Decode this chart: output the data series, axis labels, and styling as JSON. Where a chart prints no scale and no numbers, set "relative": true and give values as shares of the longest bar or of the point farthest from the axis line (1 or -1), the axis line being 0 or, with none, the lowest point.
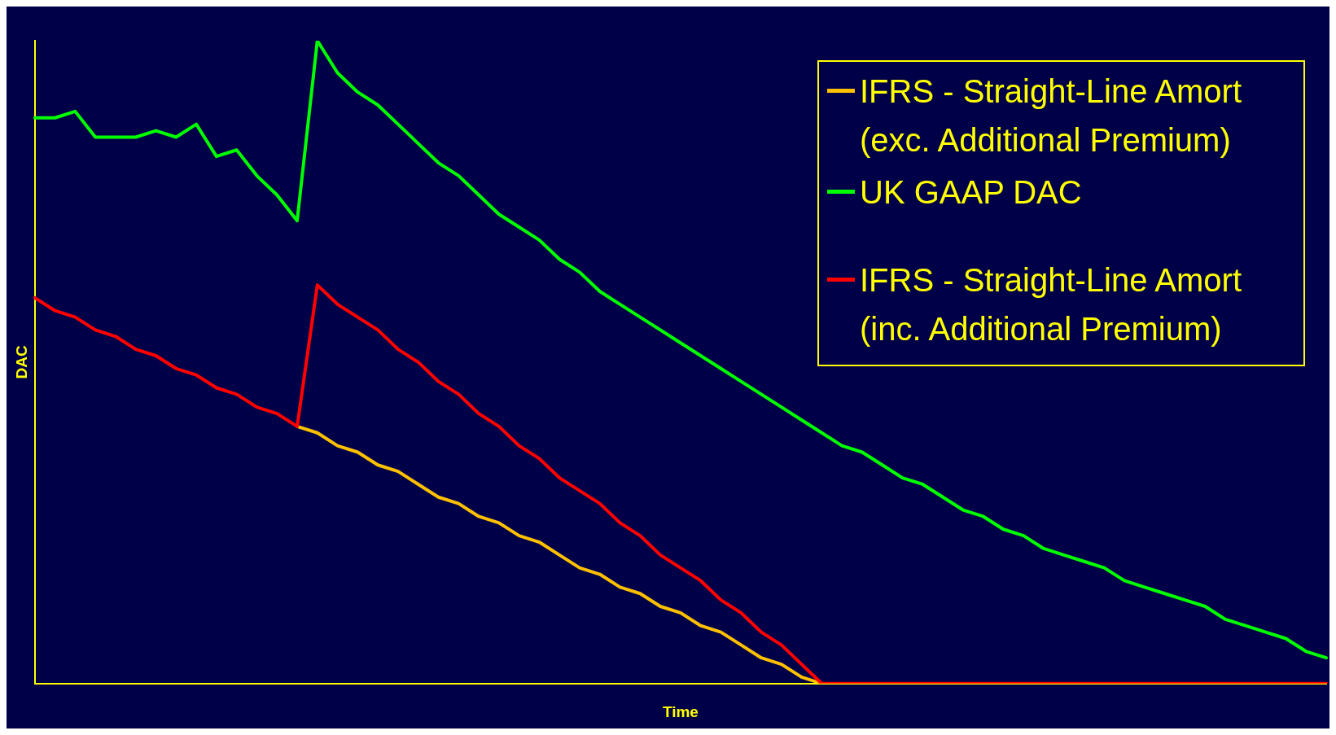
{
  "chart_data": {
    "type": "line",
    "relative": true,
    "xlabel": "Time",
    "ylabel": "DAC",
    "legend": "top right",
    "grid": false,
    "marker": "none",
    "line_style": "solid",
    "categories": [
      null,
      null,
      null,
      null,
      null,
      null,
      null,
      null,
      null,
      null,
      null,
      null,
      null,
      null,
      null,
      null,
      null,
      null,
      null,
      null,
      null,
      null,
      null,
      null,
      null,
      null,
      null,
      null,
      null,
      null,
      null,
      null,
      null,
      null,
      null,
      null,
      null,
      null,
      null,
      null,
      null,
      null,
      null,
      null,
      null,
      null,
      null,
      null,
      null,
      null,
      null,
      null,
      null,
      null,
      null,
      null,
      null,
      null,
      null,
      null,
      null,
      null,
      null,
      null,
      null
    ],
    "series": [
      {
        "name": "IFRS - Straight-Line Amort (exc. Additional Premium)",
        "color": "#ffc000",
        "values": [
          null,
          null,
          null,
          null,
          null,
          null,
          null,
          null,
          null,
          null,
          null,
          null,
          null,
          0.4,
          0.39,
          0.37,
          0.36,
          0.34,
          0.33,
          0.31,
          0.29,
          0.28,
          0.26,
          0.25,
          0.23,
          0.22,
          0.2,
          0.18,
          0.17,
          0.15,
          0.14,
          0.12,
          0.11,
          0.09,
          0.08,
          0.06,
          0.04,
          0.03,
          0.01,
          0,
          null,
          null,
          null,
          null,
          null,
          null,
          null,
          null,
          null,
          null,
          null,
          null,
          null,
          null,
          null,
          null,
          null,
          null,
          null,
          null,
          null,
          null,
          null,
          null,
          null
        ]
      },
      {
        "name": "UK GAAP DAC",
        "color": "#00ff00",
        "values": [
          0.88,
          0.88,
          0.89,
          0.85,
          0.85,
          0.85,
          0.86,
          0.85,
          0.87,
          0.82,
          0.83,
          0.79,
          0.76,
          0.72,
          1,
          0.95,
          0.92,
          0.9,
          0.87,
          0.84,
          0.81,
          0.79,
          0.76,
          0.73,
          0.71,
          0.69,
          0.66,
          0.64,
          0.61,
          0.59,
          0.57,
          0.55,
          0.53,
          0.51,
          0.49,
          0.47,
          0.45,
          0.43,
          0.41,
          0.39,
          0.37,
          0.36,
          0.34,
          0.32,
          0.31,
          0.29,
          0.27,
          0.26,
          0.24,
          0.23,
          0.21,
          0.2,
          0.19,
          0.18,
          0.16,
          0.15,
          0.14,
          0.13,
          0.12,
          0.1,
          0.09,
          0.08,
          0.07,
          0.05,
          0.04
        ]
      },
      {
        "name": "IFRS - Straight-Line Amort (inc. Additional Premium)",
        "color": "#ff0000",
        "values": [
          0.6,
          0.58,
          0.57,
          0.55,
          0.54,
          0.52,
          0.51,
          0.49,
          0.48,
          0.46,
          0.45,
          0.43,
          0.42,
          0.4,
          0.62,
          0.59,
          0.57,
          0.55,
          0.52,
          0.5,
          0.47,
          0.45,
          0.42,
          0.4,
          0.37,
          0.35,
          0.32,
          0.3,
          0.28,
          0.25,
          0.23,
          0.2,
          0.18,
          0.16,
          0.13,
          0.11,
          0.08,
          0.06,
          0.03,
          0,
          0,
          0,
          0,
          0,
          0,
          0,
          0,
          0,
          0,
          0,
          0,
          0,
          0,
          0,
          0,
          0,
          0,
          0,
          0,
          0,
          0,
          0,
          0,
          0,
          0
        ]
      }
    ]
  }
}
